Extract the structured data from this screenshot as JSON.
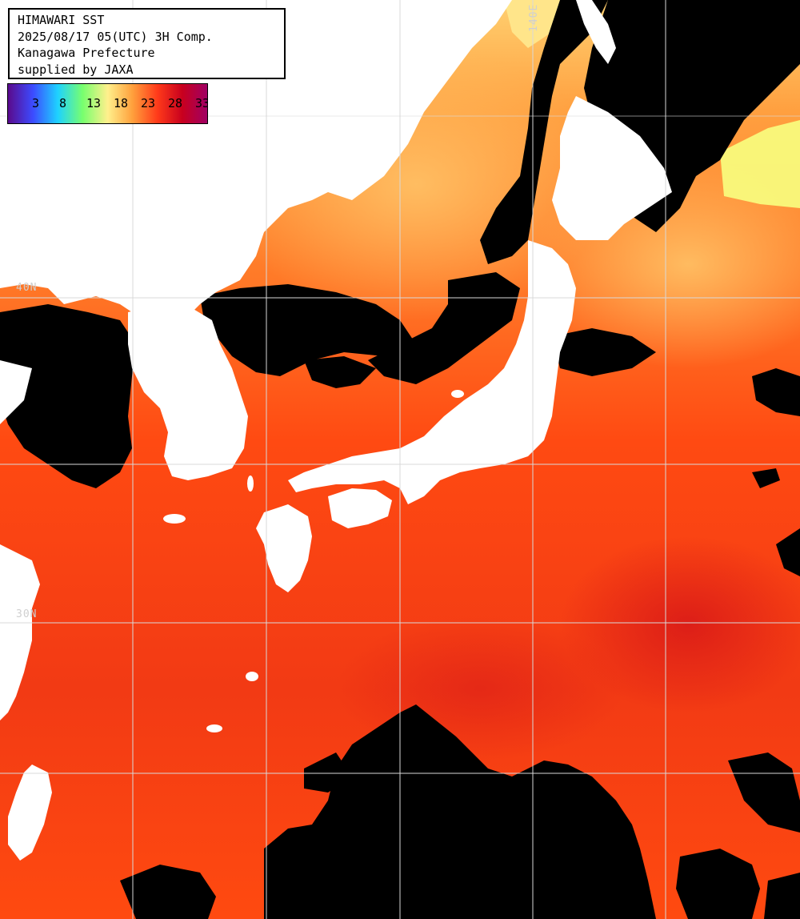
{
  "header": {
    "line1": "HIMAWARI SST",
    "line2": "2025/08/17 05(UTC) 3H Comp.",
    "line3": "Kanagawa Prefecture",
    "line4": "supplied by JAXA"
  },
  "legend": {
    "ticks": [
      "3",
      "8",
      "13",
      "18",
      "23",
      "28",
      "33"
    ],
    "colors": [
      "#5a0a8c",
      "#3c4bff",
      "#1ed2ff",
      "#78ff6e",
      "#fff08c",
      "#ffa03c",
      "#ff3a1a",
      "#c8001e",
      "#a00064"
    ]
  },
  "grid_labels": {
    "lat_top": "40N",
    "lat_mid": "30N",
    "lon_right": "140E"
  },
  "colors": {
    "land": "#ffffff",
    "cloud": "#000000",
    "gridline": "#d8d8d8",
    "sea_warm": "#ff4a10",
    "sea_hot": "#e8261a",
    "sea_cool": "#ff9a3a",
    "sea_cold": "#ffd070"
  }
}
